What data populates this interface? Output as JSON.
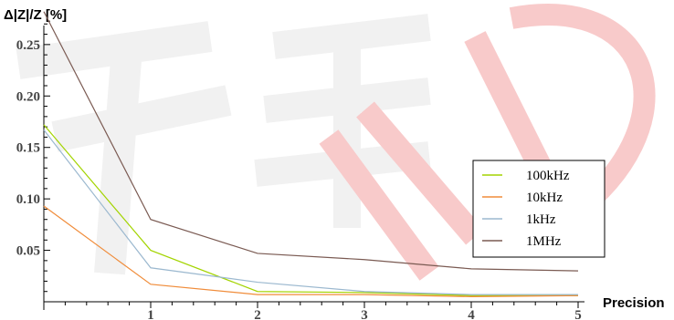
{
  "chart_data": {
    "type": "line",
    "ylabel": "Δ|Z|/Z [%]",
    "xlabel": "Precision",
    "xlim": [
      0,
      5
    ],
    "ylim": [
      0,
      0.28
    ],
    "x": [
      0,
      1,
      2,
      3,
      4,
      5
    ],
    "x_ticks": [
      "1",
      "2",
      "3",
      "4",
      "5"
    ],
    "y_ticks": [
      "0.05",
      "0.10",
      "0.15",
      "0.20",
      "0.25"
    ],
    "series": [
      {
        "name": "100kHz",
        "color": "#a3d400",
        "values": [
          0.172,
          0.05,
          0.01,
          0.009,
          0.006,
          0.006
        ]
      },
      {
        "name": "10kHz",
        "color": "#f08c3a",
        "values": [
          0.093,
          0.017,
          0.007,
          0.007,
          0.005,
          0.006
        ]
      },
      {
        "name": "1kHz",
        "color": "#9bb8cf",
        "values": [
          0.167,
          0.033,
          0.019,
          0.01,
          0.007,
          0.007
        ]
      },
      {
        "name": "1MHz",
        "color": "#7a5a52",
        "values": [
          0.282,
          0.08,
          0.047,
          0.041,
          0.032,
          0.03
        ]
      }
    ],
    "legend_position": "right",
    "grid": false
  }
}
